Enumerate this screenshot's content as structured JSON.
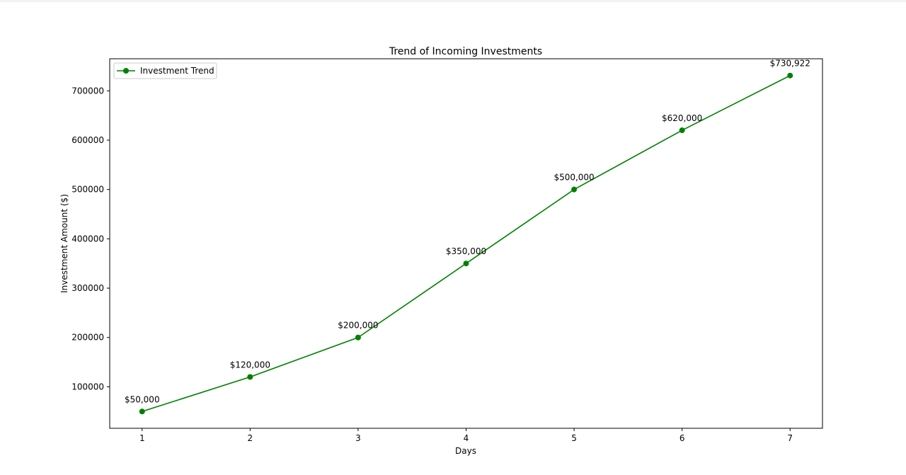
{
  "chart_data": {
    "type": "line",
    "title": "Trend of Incoming Investments",
    "xlabel": "Days",
    "ylabel": "Investment Amount ($)",
    "x": [
      1,
      2,
      3,
      4,
      5,
      6,
      7
    ],
    "xticks": [
      "1",
      "2",
      "3",
      "4",
      "5",
      "6",
      "7"
    ],
    "yticks": [
      100000,
      200000,
      300000,
      400000,
      500000,
      600000,
      700000
    ],
    "ytick_labels": [
      "100000",
      "200000",
      "300000",
      "400000",
      "500000",
      "600000",
      "700000"
    ],
    "xlim": [
      0.7,
      7.3
    ],
    "ylim": [
      15954,
      764968
    ],
    "series": [
      {
        "name": "Investment Trend",
        "color": "#008000",
        "values": [
          50000,
          120000,
          200000,
          350000,
          500000,
          620000,
          730922
        ],
        "labels": [
          "$50,000",
          "$120,000",
          "$200,000",
          "$350,000",
          "$500,000",
          "$620,000",
          "$730,922"
        ]
      }
    ],
    "legend": "upper-left",
    "grid": false
  }
}
